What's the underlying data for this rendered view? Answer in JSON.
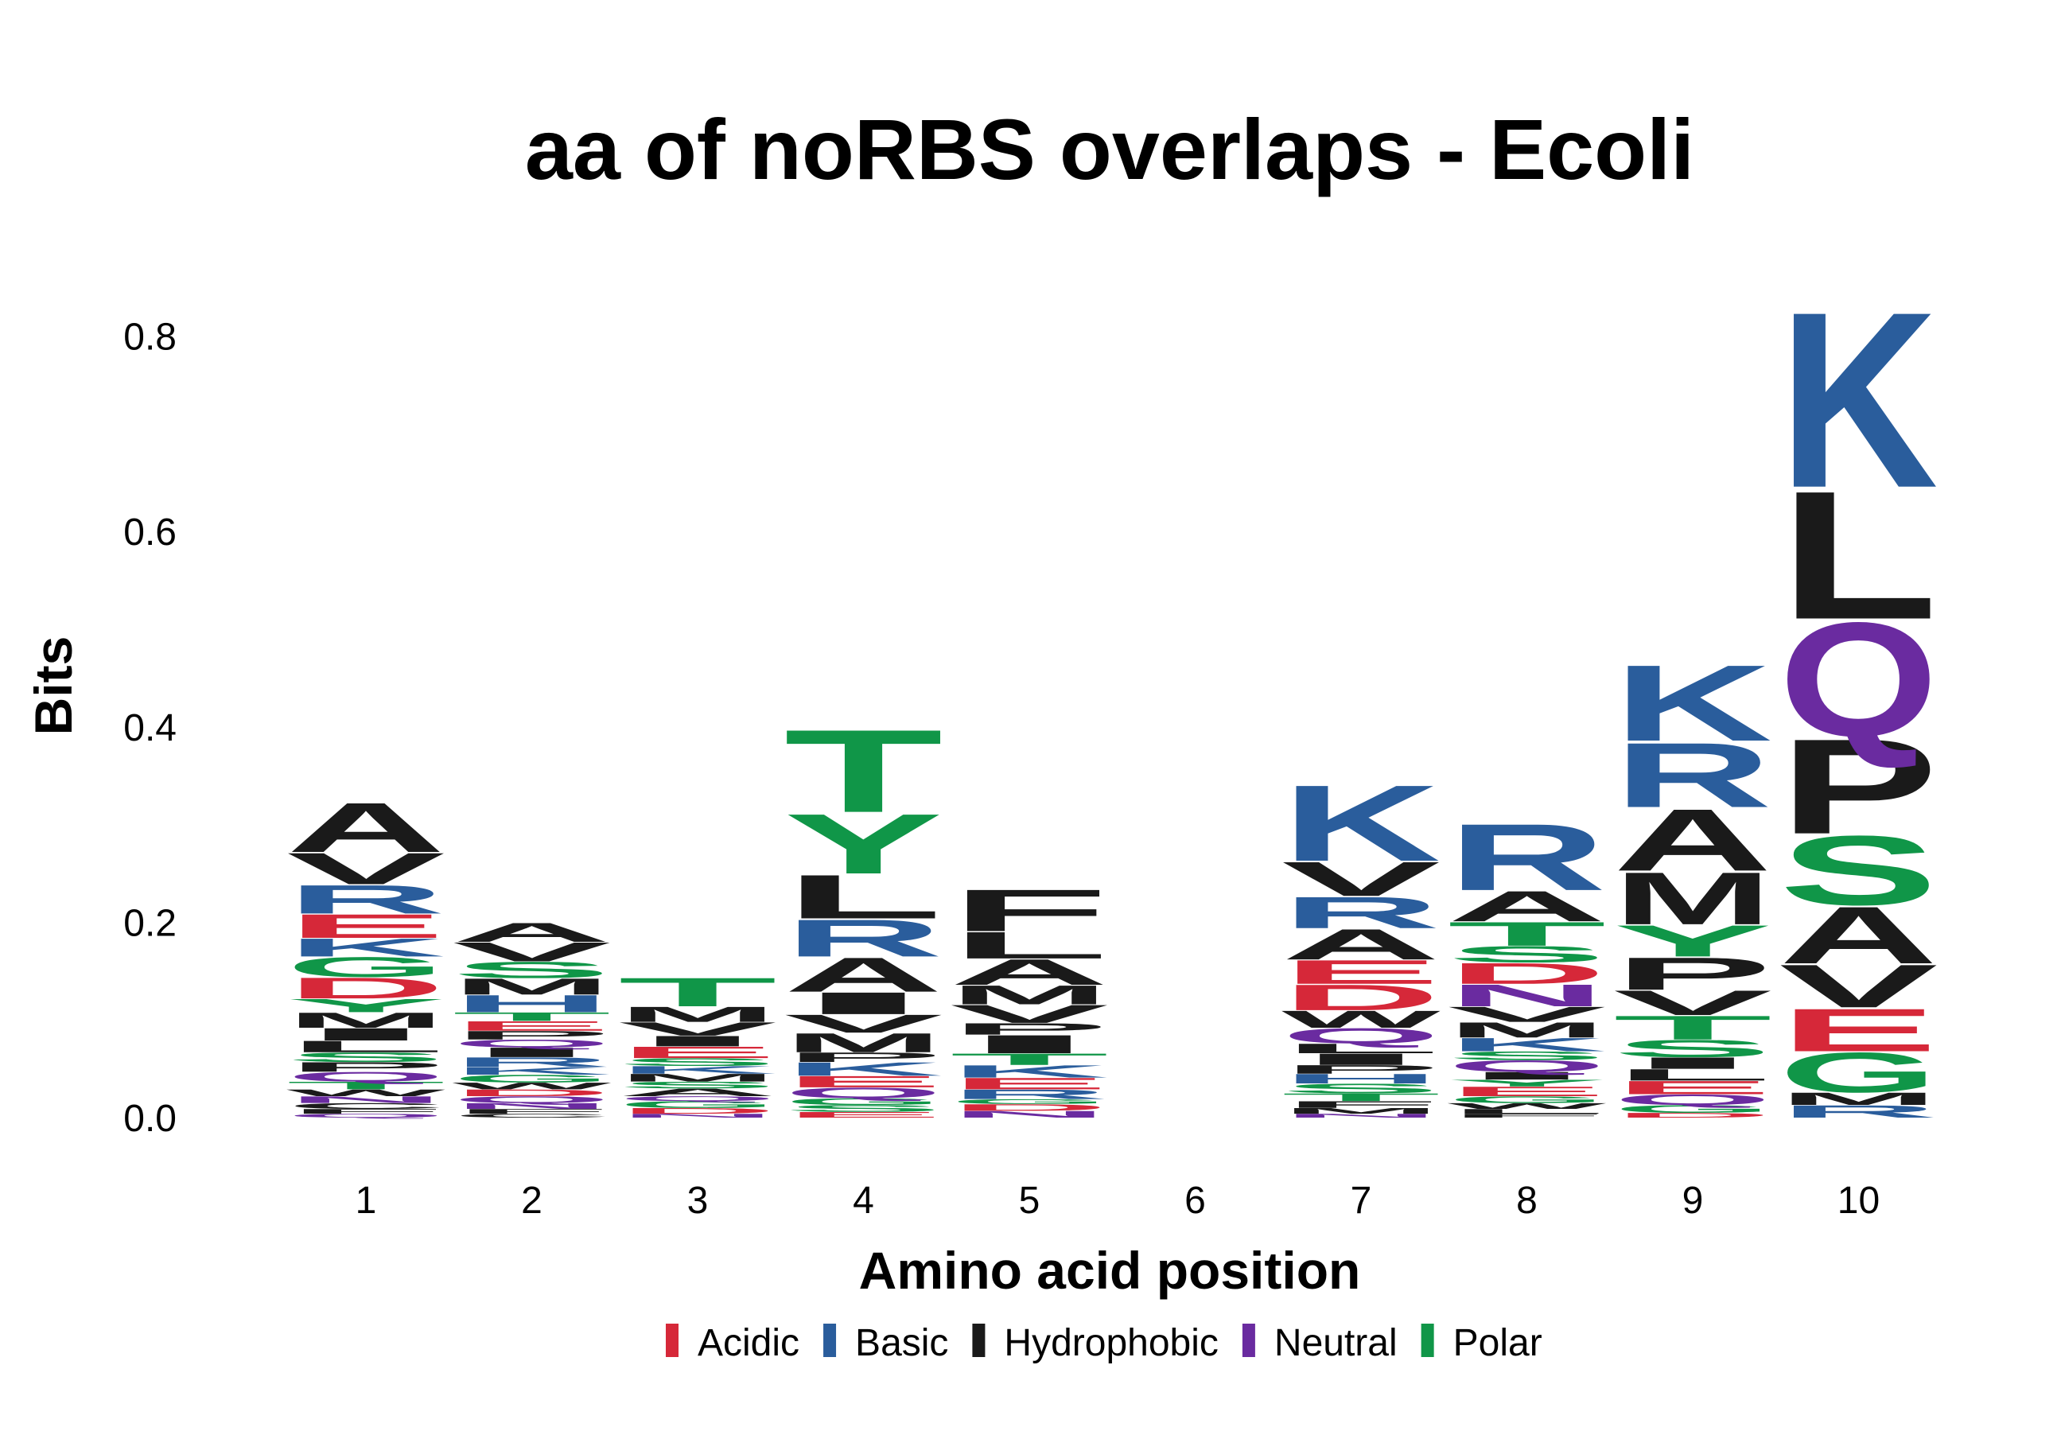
{
  "chart_data": {
    "type": "sequence-logo",
    "title": "aa of noRBS overlaps - Ecoli",
    "xlabel": "Amino acid position",
    "ylabel": "Bits",
    "ylim": [
      0,
      0.88
    ],
    "yticks": [
      "0.0",
      "0.2",
      "0.4",
      "0.6",
      "0.8"
    ],
    "ytick_values": [
      0.0,
      0.2,
      0.4,
      0.6,
      0.8
    ],
    "positions": [
      "1",
      "2",
      "3",
      "4",
      "5",
      "6",
      "7",
      "8",
      "9",
      "10"
    ],
    "colors": {
      "Acidic": "#D62839",
      "Basic": "#2A5D9C",
      "Hydrophobic": "#1A1A1A",
      "Neutral": "#6A2BA0",
      "Polar": "#109648"
    },
    "legend": {
      "position": "bottom",
      "items": [
        "Acidic",
        "Basic",
        "Hydrophobic",
        "Neutral",
        "Polar"
      ]
    },
    "stacks": [
      {
        "position": "1",
        "letters": [
          {
            "aa": "Q",
            "class": "Neutral",
            "bits": 0.004
          },
          {
            "aa": "F",
            "class": "Hydrophobic",
            "bits": 0.005
          },
          {
            "aa": "C",
            "class": "Hydrophobic",
            "bits": 0.006
          },
          {
            "aa": "N",
            "class": "Neutral",
            "bits": 0.007
          },
          {
            "aa": "W",
            "class": "Hydrophobic",
            "bits": 0.007
          },
          {
            "aa": "T",
            "class": "Polar",
            "bits": 0.008
          },
          {
            "aa": "Q",
            "class": "Neutral",
            "bits": 0.01
          },
          {
            "aa": "P",
            "class": "Hydrophobic",
            "bits": 0.01
          },
          {
            "aa": "S",
            "class": "Polar",
            "bits": 0.01
          },
          {
            "aa": "L",
            "class": "Hydrophobic",
            "bits": 0.012
          },
          {
            "aa": "I",
            "class": "Hydrophobic",
            "bits": 0.013
          },
          {
            "aa": "M",
            "class": "Hydrophobic",
            "bits": 0.016
          },
          {
            "aa": "Y",
            "class": "Polar",
            "bits": 0.014
          },
          {
            "aa": "D",
            "class": "Acidic",
            "bits": 0.022
          },
          {
            "aa": "G",
            "class": "Polar",
            "bits": 0.021
          },
          {
            "aa": "K",
            "class": "Basic",
            "bits": 0.019
          },
          {
            "aa": "E",
            "class": "Acidic",
            "bits": 0.025
          },
          {
            "aa": "R",
            "class": "Basic",
            "bits": 0.03
          },
          {
            "aa": "V",
            "class": "Hydrophobic",
            "bits": 0.033
          },
          {
            "aa": "A",
            "class": "Hydrophobic",
            "bits": 0.052
          }
        ]
      },
      {
        "position": "2",
        "letters": [
          {
            "aa": "C",
            "class": "Hydrophobic",
            "bits": 0.004
          },
          {
            "aa": "F",
            "class": "Hydrophobic",
            "bits": 0.005
          },
          {
            "aa": "N",
            "class": "Neutral",
            "bits": 0.006
          },
          {
            "aa": "Q",
            "class": "Neutral",
            "bits": 0.007
          },
          {
            "aa": "D",
            "class": "Acidic",
            "bits": 0.007
          },
          {
            "aa": "W",
            "class": "Hydrophobic",
            "bits": 0.007
          },
          {
            "aa": "G",
            "class": "Polar",
            "bits": 0.008
          },
          {
            "aa": "K",
            "class": "Basic",
            "bits": 0.008
          },
          {
            "aa": "R",
            "class": "Basic",
            "bits": 0.01
          },
          {
            "aa": "I",
            "class": "Hydrophobic",
            "bits": 0.01
          },
          {
            "aa": "Q",
            "class": "Neutral",
            "bits": 0.008
          },
          {
            "aa": "P",
            "class": "Hydrophobic",
            "bits": 0.009
          },
          {
            "aa": "E",
            "class": "Acidic",
            "bits": 0.01
          },
          {
            "aa": "T",
            "class": "Polar",
            "bits": 0.009
          },
          {
            "aa": "H",
            "class": "Basic",
            "bits": 0.018
          },
          {
            "aa": "M",
            "class": "Hydrophobic",
            "bits": 0.017
          },
          {
            "aa": "S",
            "class": "Polar",
            "bits": 0.017
          },
          {
            "aa": "V",
            "class": "Hydrophobic",
            "bits": 0.02
          },
          {
            "aa": "A",
            "class": "Hydrophobic",
            "bits": 0.02
          }
        ]
      },
      {
        "position": "3",
        "letters": [
          {
            "aa": "N",
            "class": "Neutral",
            "bits": 0.004
          },
          {
            "aa": "D",
            "class": "Acidic",
            "bits": 0.006
          },
          {
            "aa": "G",
            "class": "Polar",
            "bits": 0.007
          },
          {
            "aa": "Q",
            "class": "Neutral",
            "bits": 0.005
          },
          {
            "aa": "A",
            "class": "Hydrophobic",
            "bits": 0.008
          },
          {
            "aa": "S",
            "class": "Polar",
            "bits": 0.007
          },
          {
            "aa": "M",
            "class": "Hydrophobic",
            "bits": 0.008
          },
          {
            "aa": "K",
            "class": "Basic",
            "bits": 0.008
          },
          {
            "aa": "S",
            "class": "Polar",
            "bits": 0.008
          },
          {
            "aa": "E",
            "class": "Acidic",
            "bits": 0.012
          },
          {
            "aa": "I",
            "class": "Hydrophobic",
            "bits": 0.011
          },
          {
            "aa": "V",
            "class": "Hydrophobic",
            "bits": 0.014
          },
          {
            "aa": "M",
            "class": "Hydrophobic",
            "bits": 0.016
          },
          {
            "aa": "T",
            "class": "Polar",
            "bits": 0.03
          }
        ]
      },
      {
        "position": "4",
        "letters": [
          {
            "aa": "E",
            "class": "Acidic",
            "bits": 0.006
          },
          {
            "aa": "S",
            "class": "Polar",
            "bits": 0.007
          },
          {
            "aa": "G",
            "class": "Polar",
            "bits": 0.007
          },
          {
            "aa": "Q",
            "class": "Neutral",
            "bits": 0.011
          },
          {
            "aa": "E",
            "class": "Acidic",
            "bits": 0.012
          },
          {
            "aa": "K",
            "class": "Basic",
            "bits": 0.014
          },
          {
            "aa": "P",
            "class": "Hydrophobic",
            "bits": 0.01
          },
          {
            "aa": "M",
            "class": "Hydrophobic",
            "bits": 0.02
          },
          {
            "aa": "V",
            "class": "Hydrophobic",
            "bits": 0.019
          },
          {
            "aa": "I",
            "class": "Hydrophobic",
            "bits": 0.023
          },
          {
            "aa": "A",
            "class": "Hydrophobic",
            "bits": 0.036
          },
          {
            "aa": "R",
            "class": "Basic",
            "bits": 0.039
          },
          {
            "aa": "L",
            "class": "Hydrophobic",
            "bits": 0.046
          },
          {
            "aa": "Y",
            "class": "Polar",
            "bits": 0.063
          },
          {
            "aa": "T",
            "class": "Polar",
            "bits": 0.087
          }
        ]
      },
      {
        "position": "5",
        "letters": [
          {
            "aa": "N",
            "class": "Neutral",
            "bits": 0.007
          },
          {
            "aa": "D",
            "class": "Acidic",
            "bits": 0.007
          },
          {
            "aa": "G",
            "class": "Polar",
            "bits": 0.005
          },
          {
            "aa": "R",
            "class": "Basic",
            "bits": 0.01
          },
          {
            "aa": "E",
            "class": "Acidic",
            "bits": 0.012
          },
          {
            "aa": "K",
            "class": "Basic",
            "bits": 0.013
          },
          {
            "aa": "T",
            "class": "Polar",
            "bits": 0.012
          },
          {
            "aa": "I",
            "class": "Hydrophobic",
            "bits": 0.019
          },
          {
            "aa": "P",
            "class": "Hydrophobic",
            "bits": 0.012
          },
          {
            "aa": "V",
            "class": "Hydrophobic",
            "bits": 0.019
          },
          {
            "aa": "M",
            "class": "Hydrophobic",
            "bits": 0.02
          },
          {
            "aa": "A",
            "class": "Hydrophobic",
            "bits": 0.027
          },
          {
            "aa": "L",
            "class": "Hydrophobic",
            "bits": 0.028
          },
          {
            "aa": "F",
            "class": "Hydrophobic",
            "bits": 0.044
          }
        ]
      },
      {
        "position": "6",
        "letters": []
      },
      {
        "position": "7",
        "letters": [
          {
            "aa": "N",
            "class": "Neutral",
            "bits": 0.004
          },
          {
            "aa": "M",
            "class": "Hydrophobic",
            "bits": 0.006
          },
          {
            "aa": "F",
            "class": "Hydrophobic",
            "bits": 0.007
          },
          {
            "aa": "T",
            "class": "Polar",
            "bits": 0.008
          },
          {
            "aa": "S",
            "class": "Polar",
            "bits": 0.01
          },
          {
            "aa": "H",
            "class": "Basic",
            "bits": 0.01
          },
          {
            "aa": "P",
            "class": "Hydrophobic",
            "bits": 0.009
          },
          {
            "aa": "I",
            "class": "Hydrophobic",
            "bits": 0.012
          },
          {
            "aa": "L",
            "class": "Hydrophobic",
            "bits": 0.01
          },
          {
            "aa": "Q",
            "class": "Neutral",
            "bits": 0.016
          },
          {
            "aa": "W",
            "class": "Hydrophobic",
            "bits": 0.018
          },
          {
            "aa": "D",
            "class": "Acidic",
            "bits": 0.027
          },
          {
            "aa": "E",
            "class": "Acidic",
            "bits": 0.025
          },
          {
            "aa": "A",
            "class": "Hydrophobic",
            "bits": 0.032
          },
          {
            "aa": "R",
            "class": "Basic",
            "bits": 0.033
          },
          {
            "aa": "V",
            "class": "Hydrophobic",
            "bits": 0.036
          },
          {
            "aa": "K",
            "class": "Basic",
            "bits": 0.08
          }
        ]
      },
      {
        "position": "8",
        "letters": [
          {
            "aa": "F",
            "class": "Hydrophobic",
            "bits": 0.004
          },
          {
            "aa": "L",
            "class": "Hydrophobic",
            "bits": 0.005
          },
          {
            "aa": "W",
            "class": "Hydrophobic",
            "bits": 0.006
          },
          {
            "aa": "G",
            "class": "Polar",
            "bits": 0.007
          },
          {
            "aa": "E",
            "class": "Acidic",
            "bits": 0.01
          },
          {
            "aa": "Y",
            "class": "Polar",
            "bits": 0.007
          },
          {
            "aa": "I",
            "class": "Hydrophobic",
            "bits": 0.008
          },
          {
            "aa": "Q",
            "class": "Neutral",
            "bits": 0.012
          },
          {
            "aa": "S",
            "class": "Polar",
            "bits": 0.009
          },
          {
            "aa": "K",
            "class": "Basic",
            "bits": 0.014
          },
          {
            "aa": "M",
            "class": "Hydrophobic",
            "bits": 0.016
          },
          {
            "aa": "V",
            "class": "Hydrophobic",
            "bits": 0.016
          },
          {
            "aa": "N",
            "class": "Neutral",
            "bits": 0.023
          },
          {
            "aa": "D",
            "class": "Acidic",
            "bits": 0.022
          },
          {
            "aa": "S",
            "class": "Polar",
            "bits": 0.017
          },
          {
            "aa": "T",
            "class": "Polar",
            "bits": 0.025
          },
          {
            "aa": "A",
            "class": "Hydrophobic",
            "bits": 0.032
          },
          {
            "aa": "R",
            "class": "Basic",
            "bits": 0.07
          }
        ]
      },
      {
        "position": "9",
        "letters": [
          {
            "aa": "D",
            "class": "Acidic",
            "bits": 0.005
          },
          {
            "aa": "G",
            "class": "Polar",
            "bits": 0.008
          },
          {
            "aa": "Q",
            "class": "Neutral",
            "bits": 0.011
          },
          {
            "aa": "E",
            "class": "Acidic",
            "bits": 0.014
          },
          {
            "aa": "L",
            "class": "Hydrophobic",
            "bits": 0.012
          },
          {
            "aa": "I",
            "class": "Hydrophobic",
            "bits": 0.012
          },
          {
            "aa": "S",
            "class": "Polar",
            "bits": 0.018
          },
          {
            "aa": "T",
            "class": "Polar",
            "bits": 0.025
          },
          {
            "aa": "V",
            "class": "Hydrophobic",
            "bits": 0.026
          },
          {
            "aa": "P",
            "class": "Hydrophobic",
            "bits": 0.034
          },
          {
            "aa": "Y",
            "class": "Polar",
            "bits": 0.033
          },
          {
            "aa": "M",
            "class": "Hydrophobic",
            "bits": 0.055
          },
          {
            "aa": "A",
            "class": "Hydrophobic",
            "bits": 0.065
          },
          {
            "aa": "R",
            "class": "Basic",
            "bits": 0.068
          },
          {
            "aa": "K",
            "class": "Basic",
            "bits": 0.08
          }
        ]
      },
      {
        "position": "10",
        "letters": [
          {
            "aa": "R",
            "class": "Basic",
            "bits": 0.013
          },
          {
            "aa": "M",
            "class": "Hydrophobic",
            "bits": 0.013
          },
          {
            "aa": "G",
            "class": "Polar",
            "bits": 0.042
          },
          {
            "aa": "E",
            "class": "Acidic",
            "bits": 0.045
          },
          {
            "aa": "V",
            "class": "Hydrophobic",
            "bits": 0.045
          },
          {
            "aa": "A",
            "class": "Hydrophobic",
            "bits": 0.06
          },
          {
            "aa": "S",
            "class": "Polar",
            "bits": 0.073
          },
          {
            "aa": "P",
            "class": "Hydrophobic",
            "bits": 0.1
          },
          {
            "aa": "Q",
            "class": "Neutral",
            "bits": 0.12
          },
          {
            "aa": "L",
            "class": "Hydrophobic",
            "bits": 0.135
          },
          {
            "aa": "K",
            "class": "Basic",
            "bits": 0.185
          }
        ]
      }
    ]
  }
}
